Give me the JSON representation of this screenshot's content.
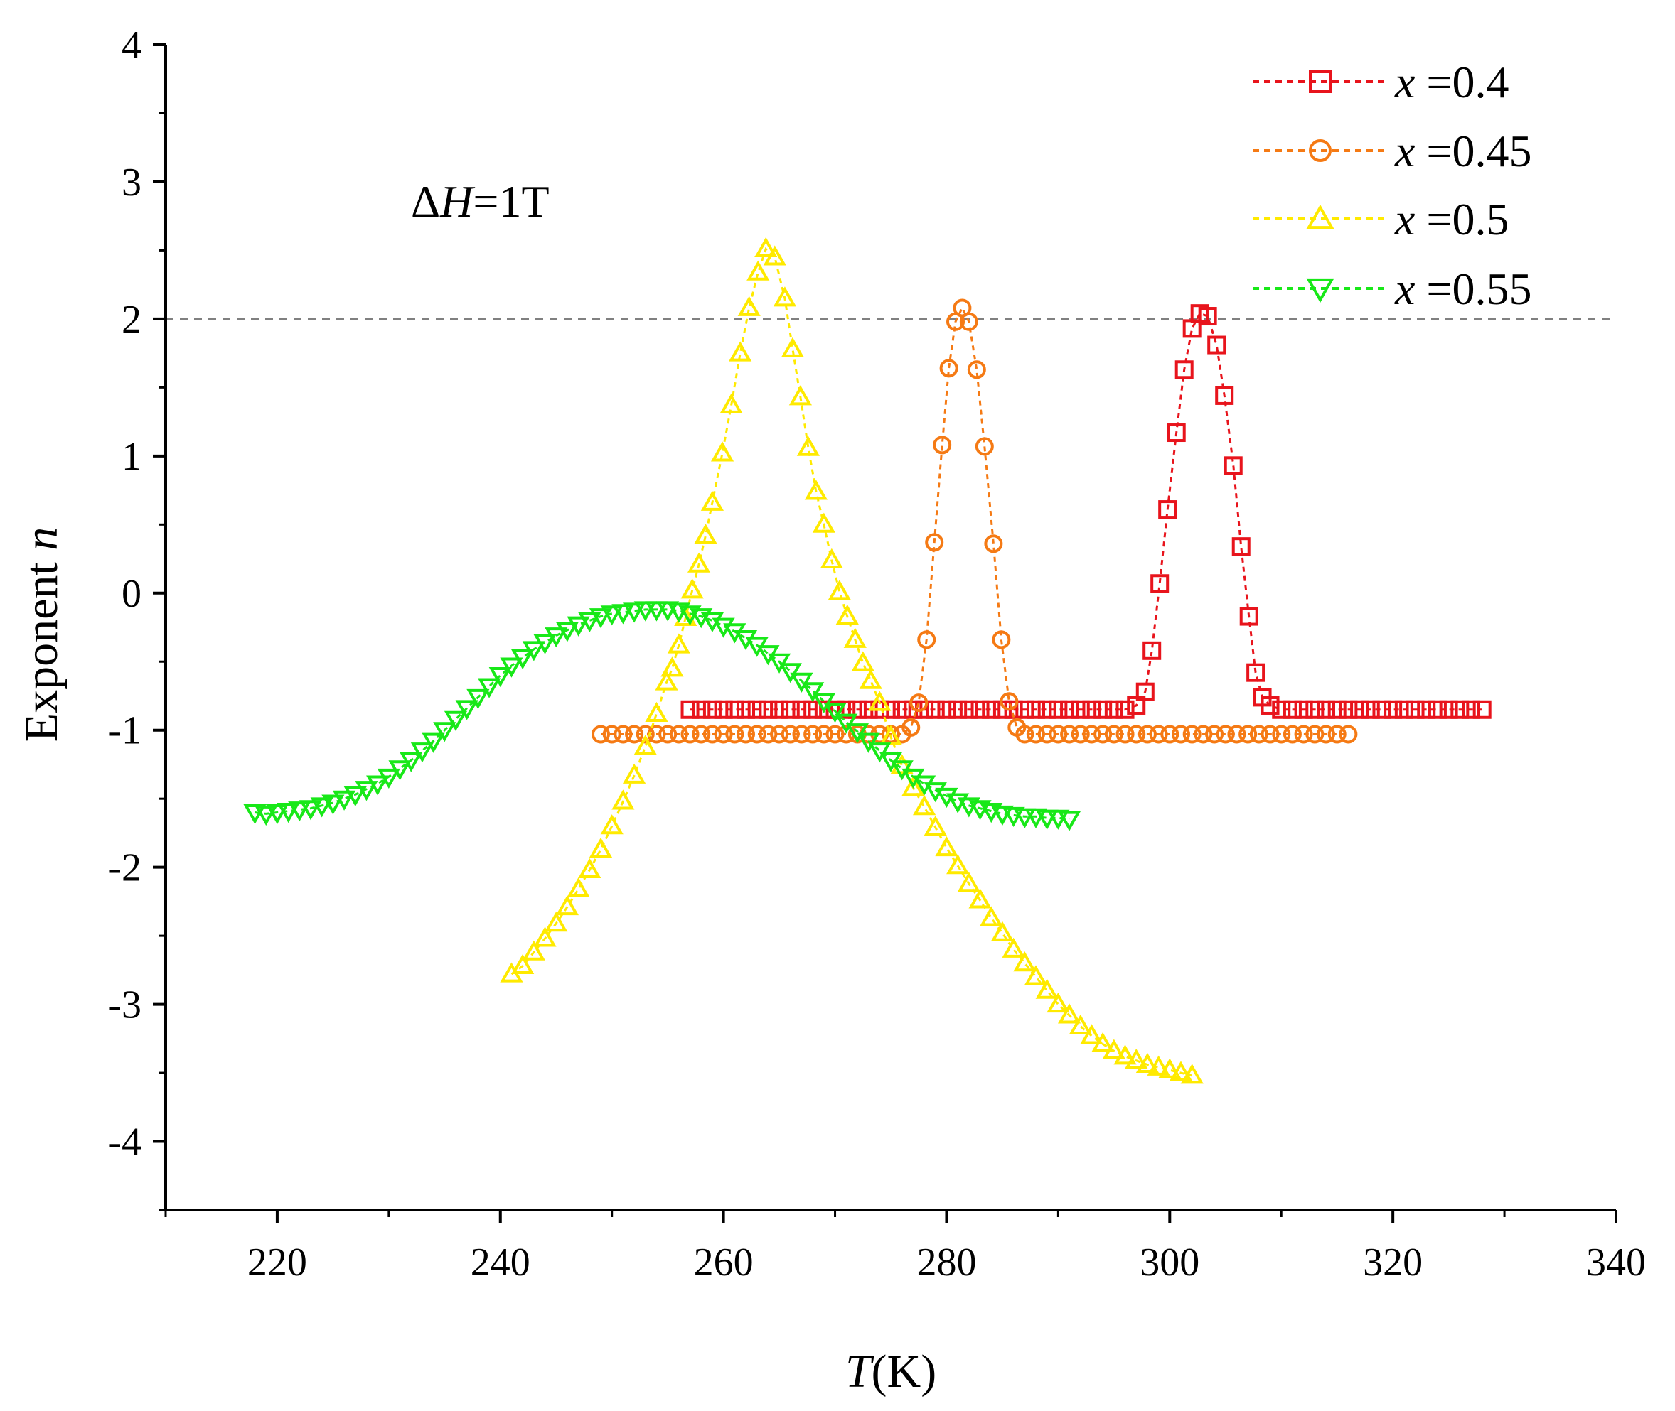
{
  "chart_data": {
    "type": "scatter",
    "title": "",
    "xlabel": "T(K)",
    "xlabel_var": "T",
    "xlabel_unit": "(K)",
    "ylabel": "Exponent n",
    "ylabel_word": "Exponent ",
    "ylabel_var": "n",
    "xlim": [
      210,
      340
    ],
    "ylim": [
      -4.5,
      4
    ],
    "xticks": [
      220,
      240,
      260,
      280,
      300,
      320,
      340
    ],
    "xtick_labels": [
      "220",
      "240",
      "260",
      "280",
      "300",
      "320",
      "340"
    ],
    "yticks": [
      4,
      3,
      2,
      1,
      0,
      -1,
      -2,
      -3,
      -4
    ],
    "ytick_labels": [
      "4",
      "3",
      "2",
      "1",
      "0",
      "-1",
      "-2",
      "-3",
      "-4"
    ],
    "grid": false,
    "legend_position": "top-right",
    "reference_line": {
      "y": 2,
      "style": "dashed",
      "color": "#808080"
    },
    "annotation": {
      "prefix": "Δ",
      "var": "H",
      "text": "=1T"
    },
    "series": [
      {
        "name": "x =0.4",
        "label_var": "x",
        "label_text": " =0.4",
        "color": "#e8141c",
        "marker": "square",
        "points": [
          [
            257,
            -0.85
          ],
          [
            258,
            -0.85
          ],
          [
            259,
            -0.85
          ],
          [
            260,
            -0.85
          ],
          [
            261,
            -0.85
          ],
          [
            262,
            -0.85
          ],
          [
            263,
            -0.85
          ],
          [
            264,
            -0.85
          ],
          [
            265,
            -0.85
          ],
          [
            266,
            -0.85
          ],
          [
            267,
            -0.85
          ],
          [
            268,
            -0.85
          ],
          [
            269,
            -0.85
          ],
          [
            270,
            -0.85
          ],
          [
            271,
            -0.85
          ],
          [
            272,
            -0.85
          ],
          [
            273,
            -0.85
          ],
          [
            274,
            -0.85
          ],
          [
            275,
            -0.85
          ],
          [
            276,
            -0.85
          ],
          [
            277,
            -0.85
          ],
          [
            278,
            -0.85
          ],
          [
            279,
            -0.85
          ],
          [
            280,
            -0.85
          ],
          [
            281,
            -0.85
          ],
          [
            282,
            -0.85
          ],
          [
            283,
            -0.85
          ],
          [
            284,
            -0.85
          ],
          [
            285,
            -0.85
          ],
          [
            286,
            -0.85
          ],
          [
            287,
            -0.85
          ],
          [
            288,
            -0.85
          ],
          [
            289,
            -0.85
          ],
          [
            290,
            -0.85
          ],
          [
            291,
            -0.85
          ],
          [
            292,
            -0.85
          ],
          [
            293,
            -0.85
          ],
          [
            294,
            -0.85
          ],
          [
            295,
            -0.85
          ],
          [
            296,
            -0.85
          ],
          [
            297,
            -0.82
          ],
          [
            297.8,
            -0.72
          ],
          [
            298.4,
            -0.42
          ],
          [
            299.1,
            0.07
          ],
          [
            299.8,
            0.61
          ],
          [
            300.6,
            1.17
          ],
          [
            301.3,
            1.63
          ],
          [
            302,
            1.93
          ],
          [
            302.7,
            2.04
          ],
          [
            303.4,
            2.02
          ],
          [
            304.2,
            1.81
          ],
          [
            304.9,
            1.44
          ],
          [
            305.7,
            0.93
          ],
          [
            306.4,
            0.34
          ],
          [
            307.1,
            -0.17
          ],
          [
            307.7,
            -0.58
          ],
          [
            308.3,
            -0.76
          ],
          [
            309,
            -0.82
          ],
          [
            310,
            -0.85
          ],
          [
            311,
            -0.85
          ],
          [
            312,
            -0.85
          ],
          [
            313,
            -0.85
          ],
          [
            314,
            -0.85
          ],
          [
            315,
            -0.85
          ],
          [
            316,
            -0.85
          ],
          [
            317,
            -0.85
          ],
          [
            318,
            -0.85
          ],
          [
            319,
            -0.85
          ],
          [
            320,
            -0.85
          ],
          [
            321,
            -0.85
          ],
          [
            322,
            -0.85
          ],
          [
            323,
            -0.85
          ],
          [
            324,
            -0.85
          ],
          [
            325,
            -0.85
          ],
          [
            326,
            -0.85
          ],
          [
            327,
            -0.85
          ],
          [
            328,
            -0.85
          ]
        ]
      },
      {
        "name": "x =0.45",
        "label_var": "x",
        "label_text": " =0.45",
        "color": "#f57a14",
        "marker": "circle",
        "points": [
          [
            249,
            -1.03
          ],
          [
            250,
            -1.03
          ],
          [
            251,
            -1.03
          ],
          [
            252,
            -1.03
          ],
          [
            253,
            -1.03
          ],
          [
            254,
            -1.03
          ],
          [
            255,
            -1.03
          ],
          [
            256,
            -1.03
          ],
          [
            257,
            -1.03
          ],
          [
            258,
            -1.03
          ],
          [
            259,
            -1.03
          ],
          [
            260,
            -1.03
          ],
          [
            261,
            -1.03
          ],
          [
            262,
            -1.03
          ],
          [
            263,
            -1.03
          ],
          [
            264,
            -1.03
          ],
          [
            265,
            -1.03
          ],
          [
            266,
            -1.03
          ],
          [
            267,
            -1.03
          ],
          [
            268,
            -1.03
          ],
          [
            269,
            -1.03
          ],
          [
            270,
            -1.03
          ],
          [
            271,
            -1.03
          ],
          [
            272,
            -1.03
          ],
          [
            273,
            -1.03
          ],
          [
            274,
            -1.03
          ],
          [
            275,
            -1.03
          ],
          [
            276,
            -1.03
          ],
          [
            276.8,
            -0.98
          ],
          [
            277.5,
            -0.8
          ],
          [
            278.2,
            -0.34
          ],
          [
            278.9,
            0.37
          ],
          [
            279.6,
            1.08
          ],
          [
            280.2,
            1.64
          ],
          [
            280.8,
            1.98
          ],
          [
            281.4,
            2.08
          ],
          [
            282,
            1.98
          ],
          [
            282.7,
            1.63
          ],
          [
            283.4,
            1.07
          ],
          [
            284.2,
            0.36
          ],
          [
            284.9,
            -0.34
          ],
          [
            285.6,
            -0.79
          ],
          [
            286.3,
            -0.98
          ],
          [
            287,
            -1.03
          ],
          [
            288,
            -1.03
          ],
          [
            289,
            -1.03
          ],
          [
            290,
            -1.03
          ],
          [
            291,
            -1.03
          ],
          [
            292,
            -1.03
          ],
          [
            293,
            -1.03
          ],
          [
            294,
            -1.03
          ],
          [
            295,
            -1.03
          ],
          [
            296,
            -1.03
          ],
          [
            297,
            -1.03
          ],
          [
            298,
            -1.03
          ],
          [
            299,
            -1.03
          ],
          [
            300,
            -1.03
          ],
          [
            301,
            -1.03
          ],
          [
            302,
            -1.03
          ],
          [
            303,
            -1.03
          ],
          [
            304,
            -1.03
          ],
          [
            305,
            -1.03
          ],
          [
            306,
            -1.03
          ],
          [
            307,
            -1.03
          ],
          [
            308,
            -1.03
          ],
          [
            309,
            -1.03
          ],
          [
            310,
            -1.03
          ],
          [
            311,
            -1.03
          ],
          [
            312,
            -1.03
          ],
          [
            313,
            -1.03
          ],
          [
            314,
            -1.03
          ],
          [
            315,
            -1.03
          ],
          [
            316,
            -1.03
          ]
        ]
      },
      {
        "name": "x =0.5",
        "label_var": "x",
        "label_text": " =0.5",
        "color": "#ffea00",
        "marker": "triangle-up",
        "points": [
          [
            241,
            -2.78
          ],
          [
            242,
            -2.72
          ],
          [
            243,
            -2.62
          ],
          [
            244,
            -2.52
          ],
          [
            245,
            -2.41
          ],
          [
            246,
            -2.29
          ],
          [
            247,
            -2.16
          ],
          [
            248,
            -2.02
          ],
          [
            249,
            -1.87
          ],
          [
            250,
            -1.7
          ],
          [
            251,
            -1.52
          ],
          [
            252,
            -1.33
          ],
          [
            253,
            -1.12
          ],
          [
            254,
            -0.88
          ],
          [
            254.9,
            -0.65
          ],
          [
            255.4,
            -0.55
          ],
          [
            256,
            -0.38
          ],
          [
            256.6,
            -0.18
          ],
          [
            257.2,
            0.02
          ],
          [
            257.8,
            0.21
          ],
          [
            258.4,
            0.42
          ],
          [
            259,
            0.66
          ],
          [
            259.9,
            1.02
          ],
          [
            260.7,
            1.37
          ],
          [
            261.5,
            1.75
          ],
          [
            262.3,
            2.08
          ],
          [
            263.1,
            2.34
          ],
          [
            263.8,
            2.51
          ],
          [
            264.6,
            2.45
          ],
          [
            265.5,
            2.15
          ],
          [
            266.2,
            1.78
          ],
          [
            266.9,
            1.43
          ],
          [
            267.6,
            1.06
          ],
          [
            268.3,
            0.74
          ],
          [
            269,
            0.5
          ],
          [
            269.7,
            0.24
          ],
          [
            270.4,
            0.01
          ],
          [
            271.1,
            -0.17
          ],
          [
            271.8,
            -0.34
          ],
          [
            272.5,
            -0.51
          ],
          [
            273.2,
            -0.64
          ],
          [
            274,
            -0.8
          ],
          [
            275,
            -1.05
          ],
          [
            276,
            -1.26
          ],
          [
            277,
            -1.42
          ],
          [
            278,
            -1.56
          ],
          [
            279,
            -1.71
          ],
          [
            280,
            -1.86
          ],
          [
            281,
            -1.99
          ],
          [
            282,
            -2.12
          ],
          [
            283,
            -2.24
          ],
          [
            284,
            -2.37
          ],
          [
            285,
            -2.48
          ],
          [
            286,
            -2.6
          ],
          [
            287,
            -2.7
          ],
          [
            288,
            -2.8
          ],
          [
            289,
            -2.9
          ],
          [
            290,
            -3.0
          ],
          [
            291,
            -3.08
          ],
          [
            292,
            -3.16
          ],
          [
            293,
            -3.23
          ],
          [
            294,
            -3.29
          ],
          [
            295,
            -3.34
          ],
          [
            296,
            -3.38
          ],
          [
            297,
            -3.41
          ],
          [
            298,
            -3.44
          ],
          [
            299,
            -3.46
          ],
          [
            300,
            -3.48
          ],
          [
            301,
            -3.5
          ],
          [
            302,
            -3.52
          ]
        ]
      },
      {
        "name": "x =0.55",
        "label_var": "x",
        "label_text": " =0.55",
        "color": "#18e818",
        "marker": "triangle-down",
        "points": [
          [
            218,
            -1.6
          ],
          [
            219,
            -1.61
          ],
          [
            220,
            -1.6
          ],
          [
            221,
            -1.59
          ],
          [
            222,
            -1.58
          ],
          [
            223,
            -1.57
          ],
          [
            224,
            -1.55
          ],
          [
            225,
            -1.53
          ],
          [
            226,
            -1.5
          ],
          [
            227,
            -1.47
          ],
          [
            228,
            -1.43
          ],
          [
            229,
            -1.39
          ],
          [
            230,
            -1.34
          ],
          [
            231,
            -1.28
          ],
          [
            232,
            -1.22
          ],
          [
            233,
            -1.15
          ],
          [
            234,
            -1.08
          ],
          [
            235,
            -1.0
          ],
          [
            236,
            -0.92
          ],
          [
            237,
            -0.84
          ],
          [
            238,
            -0.76
          ],
          [
            239,
            -0.68
          ],
          [
            240,
            -0.6
          ],
          [
            241,
            -0.53
          ],
          [
            242,
            -0.47
          ],
          [
            243,
            -0.41
          ],
          [
            244,
            -0.36
          ],
          [
            245,
            -0.31
          ],
          [
            246,
            -0.27
          ],
          [
            247,
            -0.23
          ],
          [
            248,
            -0.2
          ],
          [
            249,
            -0.17
          ],
          [
            250,
            -0.15
          ],
          [
            251,
            -0.14
          ],
          [
            252,
            -0.13
          ],
          [
            253,
            -0.12
          ],
          [
            254,
            -0.12
          ],
          [
            255,
            -0.12
          ],
          [
            256,
            -0.13
          ],
          [
            257,
            -0.15
          ],
          [
            258,
            -0.17
          ],
          [
            259,
            -0.2
          ],
          [
            260,
            -0.24
          ],
          [
            261,
            -0.28
          ],
          [
            262,
            -0.33
          ],
          [
            263,
            -0.38
          ],
          [
            264,
            -0.44
          ],
          [
            265,
            -0.5
          ],
          [
            266,
            -0.57
          ],
          [
            267,
            -0.64
          ],
          [
            268,
            -0.71
          ],
          [
            269,
            -0.79
          ],
          [
            270,
            -0.86
          ],
          [
            271,
            -0.94
          ],
          [
            272,
            -1.01
          ],
          [
            273,
            -1.08
          ],
          [
            274,
            -1.15
          ],
          [
            275,
            -1.22
          ],
          [
            276,
            -1.28
          ],
          [
            277,
            -1.34
          ],
          [
            278,
            -1.39
          ],
          [
            279,
            -1.44
          ],
          [
            280,
            -1.48
          ],
          [
            281,
            -1.52
          ],
          [
            282,
            -1.55
          ],
          [
            283,
            -1.57
          ],
          [
            284,
            -1.59
          ],
          [
            285,
            -1.61
          ],
          [
            286,
            -1.62
          ],
          [
            287,
            -1.63
          ],
          [
            288,
            -1.63
          ],
          [
            289,
            -1.64
          ],
          [
            290,
            -1.64
          ],
          [
            291,
            -1.65
          ]
        ]
      }
    ]
  }
}
